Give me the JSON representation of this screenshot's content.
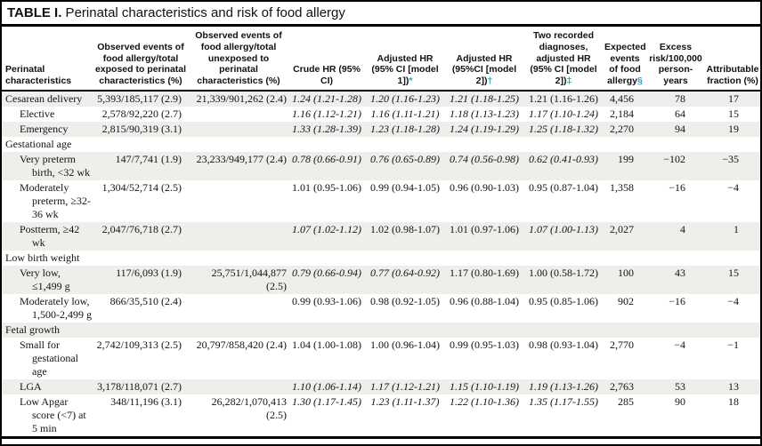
{
  "title": {
    "bold": "TABLE I.",
    "rest": " Perinatal characteristics and risk of food allergy"
  },
  "colors": {
    "footnote_marker": "#2e9fae",
    "row_stripe": "#f0eeeb",
    "rule": "#000000"
  },
  "table": {
    "columns": [
      {
        "label": "Perinatal characteristics",
        "marker": ""
      },
      {
        "label": "Observed events of food allergy/total exposed to perinatal characteristics (%)",
        "marker": ""
      },
      {
        "label": "Observed events of food allergy/total unexposed to perinatal characteristics (%)",
        "marker": ""
      },
      {
        "label": "Crude HR (95% CI)",
        "marker": ""
      },
      {
        "label": "Adjusted HR (95% CI [model 1])",
        "marker": "*"
      },
      {
        "label": "Adjusted HR (95%CI [model 2])",
        "marker": "†"
      },
      {
        "label": "Two recorded diagnoses, adjusted HR (95% CI [model 2])",
        "marker": "‡"
      },
      {
        "label": "Expected events of food allergy",
        "marker": "§"
      },
      {
        "label": "Excess risk/100,000 person-years",
        "marker": ""
      },
      {
        "label": "Attributable fraction (%)",
        "marker": ""
      }
    ],
    "rows": [
      {
        "section": false,
        "shaded": true,
        "indent": 0,
        "label": "Cesarean delivery",
        "cells": [
          {
            "t": "5,393/185,117 (2.9)"
          },
          {
            "t": "21,339/901,262 (2.4)"
          },
          {
            "t": "1.24 (1.21-1.28)",
            "i": true
          },
          {
            "t": "1.20 (1.16-1.23)",
            "i": true
          },
          {
            "t": "1.21 (1.18-1.25)",
            "i": true
          },
          {
            "t": "1.21 (1.16-1.26)"
          },
          {
            "t": "4,456"
          },
          {
            "t": "78"
          },
          {
            "t": "17"
          }
        ]
      },
      {
        "section": false,
        "shaded": false,
        "indent": 1,
        "label": "Elective",
        "cells": [
          {
            "t": "2,578/92,220 (2.7)"
          },
          {
            "t": ""
          },
          {
            "t": "1.16 (1.12-1.21)",
            "i": true
          },
          {
            "t": "1.16 (1.11-1.21)",
            "i": true
          },
          {
            "t": "1.18 (1.13-1.23)",
            "i": true
          },
          {
            "t": "1.17 (1.10-1.24)",
            "i": true
          },
          {
            "t": "2,184"
          },
          {
            "t": "64"
          },
          {
            "t": "15"
          }
        ]
      },
      {
        "section": false,
        "shaded": true,
        "indent": 1,
        "label": "Emergency",
        "cells": [
          {
            "t": "2,815/90,319 (3.1)"
          },
          {
            "t": ""
          },
          {
            "t": "1.33 (1.28-1.39)",
            "i": true
          },
          {
            "t": "1.23 (1.18-1.28)",
            "i": true
          },
          {
            "t": "1.24 (1.19-1.29)",
            "i": true
          },
          {
            "t": "1.25 (1.18-1.32)",
            "i": true
          },
          {
            "t": "2,270"
          },
          {
            "t": "94"
          },
          {
            "t": "19"
          }
        ]
      },
      {
        "section": true,
        "shaded": false,
        "indent": 0,
        "label": "Gestational age",
        "cells": []
      },
      {
        "section": false,
        "shaded": true,
        "indent": 1,
        "label": "Very preterm birth, <32 wk",
        "cells": [
          {
            "t": "147/7,741 (1.9)"
          },
          {
            "t": "23,233/949,177 (2.4)"
          },
          {
            "t": "0.78 (0.66-0.91)",
            "i": true
          },
          {
            "t": "0.76 (0.65-0.89)",
            "i": true
          },
          {
            "t": "0.74 (0.56-0.98)",
            "i": true
          },
          {
            "t": "0.62 (0.41-0.93)",
            "i": true
          },
          {
            "t": "199"
          },
          {
            "t": "−102"
          },
          {
            "t": "−35"
          }
        ]
      },
      {
        "section": false,
        "shaded": false,
        "indent": 1,
        "label": "Moderately preterm, ≥32-36 wk",
        "cells": [
          {
            "t": "1,304/52,714 (2.5)"
          },
          {
            "t": ""
          },
          {
            "t": "1.01 (0.95-1.06)"
          },
          {
            "t": "0.99 (0.94-1.05)"
          },
          {
            "t": "0.96 (0.90-1.03)"
          },
          {
            "t": "0.95 (0.87-1.04)"
          },
          {
            "t": "1,358"
          },
          {
            "t": "−16"
          },
          {
            "t": "−4"
          }
        ]
      },
      {
        "section": false,
        "shaded": true,
        "indent": 1,
        "label": "Postterm, ≥42 wk",
        "cells": [
          {
            "t": "2,047/76,718 (2.7)"
          },
          {
            "t": ""
          },
          {
            "t": "1.07 (1.02-1.12)",
            "i": true
          },
          {
            "t": "1.02 (0.98-1.07)"
          },
          {
            "t": "1.01 (0.97-1.06)"
          },
          {
            "t": "1.07 (1.00-1.13)",
            "i": true
          },
          {
            "t": "2,027"
          },
          {
            "t": "4"
          },
          {
            "t": "1"
          }
        ]
      },
      {
        "section": true,
        "shaded": false,
        "indent": 0,
        "label": "Low birth weight",
        "cells": []
      },
      {
        "section": false,
        "shaded": true,
        "indent": 1,
        "label": "Very low, ≤1,499 g",
        "cells": [
          {
            "t": "117/6,093 (1.9)"
          },
          {
            "t": "25,751/1,044,877 (2.5)"
          },
          {
            "t": "0.79 (0.66-0.94)",
            "i": true
          },
          {
            "t": "0.77 (0.64-0.92)",
            "i": true
          },
          {
            "t": "1.17 (0.80-1.69)"
          },
          {
            "t": "1.00 (0.58-1.72)"
          },
          {
            "t": "100"
          },
          {
            "t": "43"
          },
          {
            "t": "15"
          }
        ]
      },
      {
        "section": false,
        "shaded": false,
        "indent": 1,
        "label": "Moderately low, 1,500-2,499 g",
        "cells": [
          {
            "t": "866/35,510 (2.4)"
          },
          {
            "t": ""
          },
          {
            "t": "0.99 (0.93-1.06)"
          },
          {
            "t": "0.98 (0.92-1.05)"
          },
          {
            "t": "0.96 (0.88-1.04)"
          },
          {
            "t": "0.95 (0.85-1.06)"
          },
          {
            "t": "902"
          },
          {
            "t": "−16"
          },
          {
            "t": "−4"
          }
        ]
      },
      {
        "section": true,
        "shaded": true,
        "indent": 0,
        "label": "Fetal growth",
        "cells": []
      },
      {
        "section": false,
        "shaded": false,
        "indent": 1,
        "label": "Small for gestational age",
        "cells": [
          {
            "t": "2,742/109,313 (2.5)"
          },
          {
            "t": "20,797/858,420 (2.4)"
          },
          {
            "t": "1.04 (1.00-1.08)"
          },
          {
            "t": "1.00 (0.96-1.04)"
          },
          {
            "t": "0.99 (0.95-1.03)"
          },
          {
            "t": "0.98 (0.93-1.04)"
          },
          {
            "t": "2,770"
          },
          {
            "t": "−4"
          },
          {
            "t": "−1"
          }
        ]
      },
      {
        "section": false,
        "shaded": true,
        "indent": 1,
        "label": "LGA",
        "cells": [
          {
            "t": "3,178/118,071 (2.7)"
          },
          {
            "t": ""
          },
          {
            "t": "1.10 (1.06-1.14)",
            "i": true
          },
          {
            "t": "1.17 (1.12-1.21)",
            "i": true
          },
          {
            "t": "1.15 (1.10-1.19)",
            "i": true
          },
          {
            "t": "1.19 (1.13-1.26)",
            "i": true
          },
          {
            "t": "2,763"
          },
          {
            "t": "53"
          },
          {
            "t": "13"
          }
        ]
      },
      {
        "section": false,
        "shaded": false,
        "indent": 1,
        "label": "Low Apgar score (<7) at 5 min",
        "cells": [
          {
            "t": "348/11,196 (3.1)"
          },
          {
            "t": "26,282/1,070,413 (2.5)"
          },
          {
            "t": "1.30 (1.17-1.45)",
            "i": true
          },
          {
            "t": "1.23 (1.11-1.37)",
            "i": true
          },
          {
            "t": "1.22 (1.10-1.36)",
            "i": true
          },
          {
            "t": "1.35 (1.17-1.55)",
            "i": true
          },
          {
            "t": "285"
          },
          {
            "t": "90"
          },
          {
            "t": "18"
          }
        ]
      }
    ]
  }
}
